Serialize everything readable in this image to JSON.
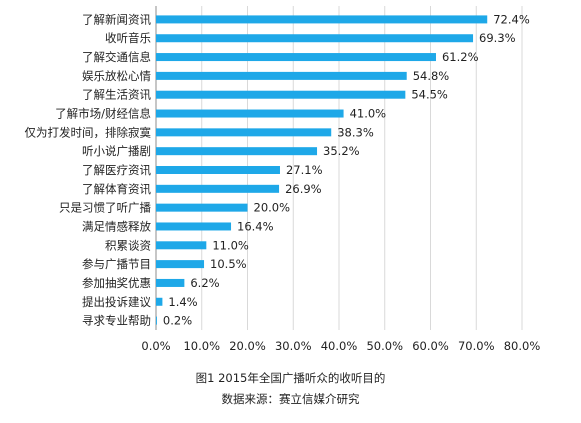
{
  "chart_data": {
    "type": "bar",
    "orientation": "horizontal",
    "categories": [
      "了解新闻资讯",
      "收听音乐",
      "了解交通信息",
      "娱乐放松心情",
      "了解生活资讯",
      "了解市场/财经信息",
      "仅为打发时间，排除寂寞",
      "听小说广播剧",
      "了解医疗资讯",
      "了解体育资讯",
      "只是习惯了听广播",
      "满足情感释放",
      "积累谈资",
      "参与广播节目",
      "参加抽奖优惠",
      "提出投诉建议",
      "寻求专业帮助"
    ],
    "values": [
      72.4,
      69.3,
      61.2,
      54.8,
      54.5,
      41.0,
      38.3,
      35.2,
      27.1,
      26.9,
      20.0,
      16.4,
      11.0,
      10.5,
      6.2,
      1.4,
      0.2
    ],
    "data_labels": [
      "72.4%",
      "69.3%",
      "61.2%",
      "54.8%",
      "54.5%",
      "41.0%",
      "38.3%",
      "35.2%",
      "27.1%",
      "26.9%",
      "20.0%",
      "16.4%",
      "11.0%",
      "10.5%",
      "6.2%",
      "1.4%",
      "0.2%"
    ],
    "x_ticks": [
      "0.0%",
      "10.0%",
      "20.0%",
      "30.0%",
      "40.0%",
      "50.0%",
      "60.0%",
      "70.0%",
      "80.0%"
    ],
    "xlim": [
      0,
      80
    ],
    "grid": true,
    "bar_color": "#1ea8e8",
    "gridline_color": "#d9d9d9"
  },
  "caption": {
    "line1": "图1  2015年全国广播听众的收听目的",
    "line2": "数据来源：赛立信媒介研究"
  }
}
